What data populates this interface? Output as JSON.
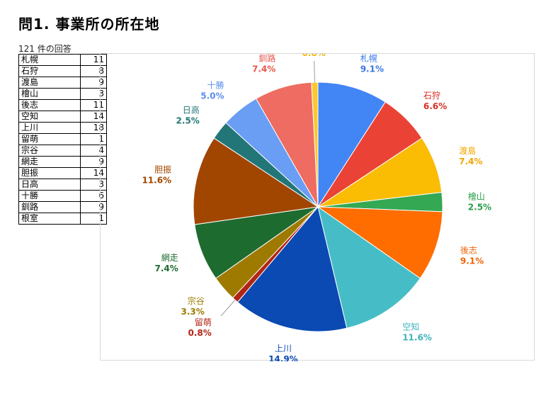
{
  "title": "問1. 事業所の所在地",
  "count_caption": "121 件の回答",
  "counts": [
    {
      "name": "札幌",
      "count": "11"
    },
    {
      "name": "石狩",
      "count": "8"
    },
    {
      "name": "渡島",
      "count": "9"
    },
    {
      "name": "檜山",
      "count": "3"
    },
    {
      "name": "後志",
      "count": "11"
    },
    {
      "name": "空知",
      "count": "14"
    },
    {
      "name": "上川",
      "count": "18"
    },
    {
      "name": "留萌",
      "count": "1"
    },
    {
      "name": "宗谷",
      "count": "4"
    },
    {
      "name": "網走",
      "count": "9"
    },
    {
      "name": "胆振",
      "count": "14"
    },
    {
      "name": "日高",
      "count": "3"
    },
    {
      "name": "十勝",
      "count": "6"
    },
    {
      "name": "釧路",
      "count": "9"
    },
    {
      "name": "根室",
      "count": "1"
    }
  ],
  "chart_data": {
    "type": "pie",
    "total": 121,
    "slices": [
      {
        "label": "札幌",
        "value": 11,
        "percent": "9.1%",
        "color": "#4285f4"
      },
      {
        "label": "石狩",
        "value": 8,
        "percent": "6.6%",
        "color": "#ea4335"
      },
      {
        "label": "渡島",
        "value": 9,
        "percent": "7.4%",
        "color": "#fbbc04"
      },
      {
        "label": "檜山",
        "value": 3,
        "percent": "2.5%",
        "color": "#34a853"
      },
      {
        "label": "後志",
        "value": 11,
        "percent": "9.1%",
        "color": "#ff6d01"
      },
      {
        "label": "空知",
        "value": 14,
        "percent": "11.6%",
        "color": "#46bdc6"
      },
      {
        "label": "上川",
        "value": 18,
        "percent": "14.9%",
        "color": "#0b49b3"
      },
      {
        "label": "留萌",
        "value": 1,
        "percent": "0.8%",
        "color": "#b22414"
      },
      {
        "label": "宗谷",
        "value": 4,
        "percent": "3.3%",
        "color": "#9e7b00"
      },
      {
        "label": "網走",
        "value": 9,
        "percent": "7.4%",
        "color": "#1e6b30"
      },
      {
        "label": "胆振",
        "value": 14,
        "percent": "11.6%",
        "color": "#a14600"
      },
      {
        "label": "日高",
        "value": 3,
        "percent": "2.5%",
        "color": "#237677"
      },
      {
        "label": "十勝",
        "value": 6,
        "percent": "5.0%",
        "color": "#6a9ef5"
      },
      {
        "label": "釧路",
        "value": 9,
        "percent": "7.4%",
        "color": "#ee6c61"
      },
      {
        "label": "根室",
        "value": 1,
        "percent": "0.8%",
        "color": "#fbc82f"
      }
    ],
    "label_colors": [
      "#3b78e7",
      "#d93025",
      "#f2a600",
      "#2a9d4a",
      "#f0640a",
      "#3fb3bb",
      "#0b49b3",
      "#b22414",
      "#9e7b00",
      "#1e6b30",
      "#a14600",
      "#237677",
      "#5a8ff0",
      "#e8574c",
      "#f2b400"
    ],
    "legend": "none"
  }
}
